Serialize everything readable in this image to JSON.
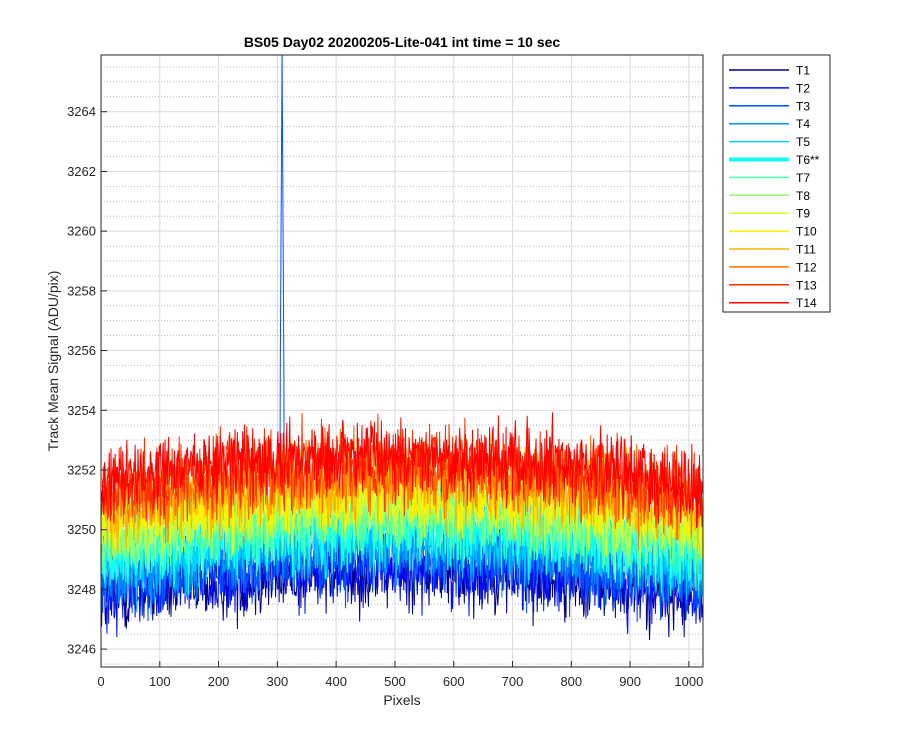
{
  "chart_data": {
    "type": "line",
    "title": "BS05 Day02 20200205-Lite-041 int time = 10 sec",
    "xlabel": "Pixels",
    "ylabel": "Track Mean Signal (ADU/pix)",
    "xlim": [
      0,
      1024
    ],
    "ylim": [
      3245.4,
      3265.9
    ],
    "xticks": [
      0,
      100,
      200,
      300,
      400,
      500,
      600,
      700,
      800,
      900,
      1000
    ],
    "yticks": [
      3246,
      3248,
      3250,
      3252,
      3254,
      3256,
      3258,
      3260,
      3262,
      3264
    ],
    "grid": "major and minor, dotted",
    "legend_location": "outside right, top",
    "n_pixels": 1024,
    "noise_amplitude_adu": 2.4,
    "spike": {
      "series": "T3",
      "pixel": 307,
      "peak": 3266.0
    },
    "series": [
      {
        "name": "T1",
        "color": "#00008f",
        "edge_level": 3247.6,
        "center_level": 3248.6
      },
      {
        "name": "T2",
        "color": "#0010ff",
        "edge_level": 3247.9,
        "center_level": 3248.9
      },
      {
        "name": "T3",
        "color": "#0050ff",
        "edge_level": 3248.2,
        "center_level": 3249.2
      },
      {
        "name": "T4",
        "color": "#0090ff",
        "edge_level": 3248.5,
        "center_level": 3249.5
      },
      {
        "name": "T5",
        "color": "#00d0ff",
        "edge_level": 3248.8,
        "center_level": 3249.8
      },
      {
        "name": "T6**",
        "color": "#10ffef",
        "edge_level": 3249.1,
        "center_level": 3250.1,
        "emphasized": true
      },
      {
        "name": "T7",
        "color": "#50ffaf",
        "edge_level": 3249.4,
        "center_level": 3250.4
      },
      {
        "name": "T8",
        "color": "#90ff70",
        "edge_level": 3249.7,
        "center_level": 3250.7
      },
      {
        "name": "T9",
        "color": "#d0ff30",
        "edge_level": 3250.0,
        "center_level": 3251.0
      },
      {
        "name": "T10",
        "color": "#ffef00",
        "edge_level": 3250.3,
        "center_level": 3251.3
      },
      {
        "name": "T11",
        "color": "#ffb000",
        "edge_level": 3250.6,
        "center_level": 3251.6
      },
      {
        "name": "T12",
        "color": "#ff7000",
        "edge_level": 3250.9,
        "center_level": 3251.9
      },
      {
        "name": "T13",
        "color": "#ff3000",
        "edge_level": 3251.2,
        "center_level": 3252.2
      },
      {
        "name": "T14",
        "color": "#ff0000",
        "edge_level": 3251.5,
        "center_level": 3252.5
      }
    ]
  }
}
